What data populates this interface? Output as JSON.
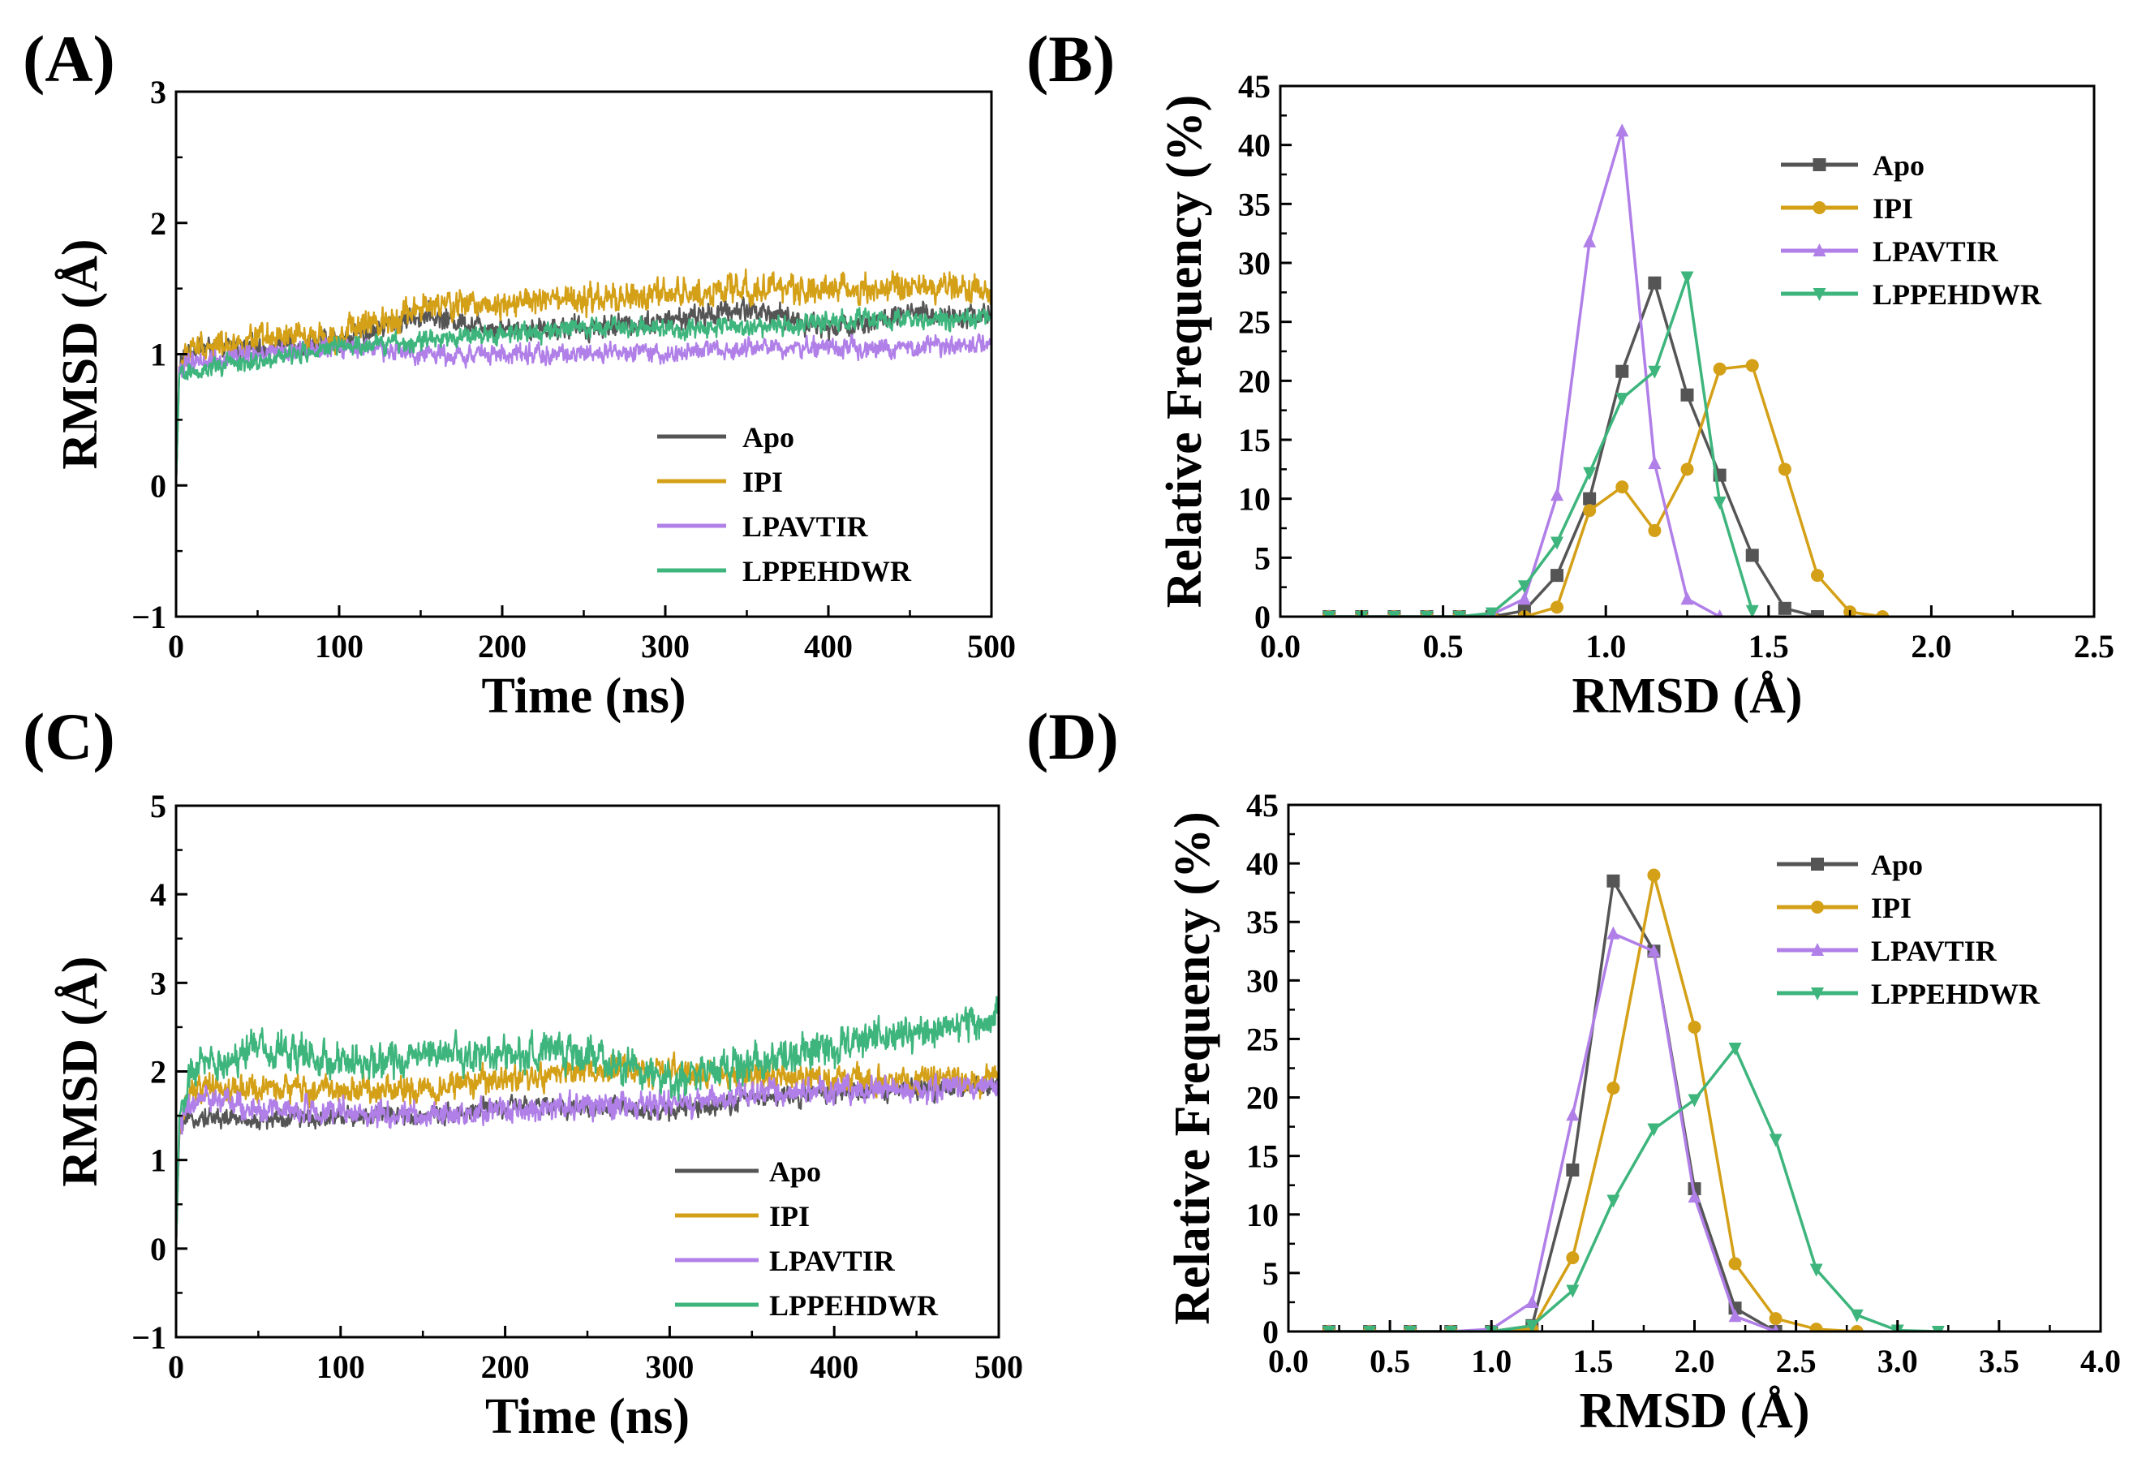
{
  "figure": {
    "colors": {
      "Apo": "#555555",
      "IPI": "#D4A017",
      "LPAVTIR": "#B07FE8",
      "LPPEHDWR": "#3DB57C"
    }
  },
  "chart_data": [
    {
      "id": "A",
      "panel_label": "(A)",
      "type": "line",
      "xlabel": "Time (ns)",
      "ylabel": "RMSD (Å)",
      "xlim": [
        0,
        500
      ],
      "ylim": [
        -1,
        3
      ],
      "xticks": [
        0,
        100,
        200,
        300,
        400,
        500
      ],
      "yticks": [
        -1,
        0,
        1,
        2,
        3
      ],
      "legend_position": "lower-right",
      "legend": [
        "Apo",
        "IPI",
        "LPAVTIR",
        "LPPEHDWR"
      ],
      "series": [
        {
          "name": "Apo",
          "color": "#555555",
          "x": [
            0,
            2,
            10,
            50,
            100,
            150,
            200,
            250,
            300,
            350,
            400,
            450,
            500
          ],
          "y": [
            0.0,
            0.9,
            1.05,
            1.05,
            1.1,
            1.3,
            1.2,
            1.2,
            1.25,
            1.35,
            1.2,
            1.3,
            1.3
          ],
          "noise": 0.07
        },
        {
          "name": "IPI",
          "color": "#D4A017",
          "x": [
            0,
            2,
            10,
            50,
            100,
            150,
            200,
            250,
            300,
            350,
            400,
            450,
            500
          ],
          "y": [
            0.0,
            0.9,
            1.05,
            1.1,
            1.15,
            1.35,
            1.4,
            1.4,
            1.45,
            1.5,
            1.5,
            1.5,
            1.5
          ],
          "noise": 0.09
        },
        {
          "name": "LPAVTIR",
          "color": "#B07FE8",
          "x": [
            0,
            2,
            10,
            50,
            100,
            150,
            200,
            250,
            300,
            350,
            400,
            450,
            500
          ],
          "y": [
            0.0,
            0.9,
            0.95,
            1.0,
            1.05,
            1.0,
            1.0,
            1.0,
            1.0,
            1.05,
            1.05,
            1.05,
            1.08
          ],
          "noise": 0.06
        },
        {
          "name": "LPPEHDWR",
          "color": "#3DB57C",
          "x": [
            0,
            2,
            10,
            50,
            100,
            150,
            200,
            250,
            300,
            350,
            400,
            450,
            500
          ],
          "y": [
            0.0,
            0.85,
            0.88,
            0.95,
            1.05,
            1.1,
            1.15,
            1.2,
            1.2,
            1.2,
            1.25,
            1.25,
            1.28
          ],
          "noise": 0.06
        }
      ]
    },
    {
      "id": "B",
      "panel_label": "(B)",
      "type": "line",
      "xlabel": "RMSD (Å)",
      "ylabel": "Relative Frequency (%)",
      "xlim": [
        0.0,
        2.5
      ],
      "ylim": [
        0,
        45
      ],
      "xticks": [
        "0.0",
        "0.5",
        "1.0",
        "1.5",
        "2.0",
        "2.5"
      ],
      "yticks": [
        0,
        5,
        10,
        15,
        20,
        25,
        30,
        35,
        40,
        45
      ],
      "legend_position": "top-right",
      "legend": [
        "Apo",
        "IPI",
        "LPAVTIR",
        "LPPEHDWR"
      ],
      "series": [
        {
          "name": "Apo",
          "color": "#555555",
          "marker": "square",
          "x": [
            0.15,
            0.25,
            0.35,
            0.45,
            0.55,
            0.65,
            0.75,
            0.85,
            0.95,
            1.05,
            1.15,
            1.25,
            1.35,
            1.45,
            1.55,
            1.65
          ],
          "y": [
            0,
            0,
            0,
            0,
            0,
            0,
            0.5,
            3.5,
            10,
            20.8,
            28.3,
            18.8,
            12,
            5.2,
            0.7,
            0
          ]
        },
        {
          "name": "IPI",
          "color": "#D4A017",
          "marker": "circle",
          "x": [
            0.15,
            0.25,
            0.35,
            0.45,
            0.55,
            0.65,
            0.75,
            0.85,
            0.95,
            1.05,
            1.15,
            1.25,
            1.35,
            1.45,
            1.55,
            1.65,
            1.75,
            1.85
          ],
          "y": [
            0,
            0,
            0,
            0,
            0,
            0,
            0,
            0.8,
            9,
            11,
            7.3,
            12.5,
            21,
            21.3,
            12.5,
            3.5,
            0.4,
            0
          ]
        },
        {
          "name": "LPAVTIR",
          "color": "#B07FE8",
          "marker": "triangle-up",
          "x": [
            0.15,
            0.25,
            0.35,
            0.45,
            0.55,
            0.65,
            0.75,
            0.85,
            0.95,
            1.05,
            1.15,
            1.25,
            1.35
          ],
          "y": [
            0,
            0,
            0,
            0,
            0,
            0.2,
            1.5,
            10.3,
            31.8,
            41.2,
            13,
            1.5,
            0
          ]
        },
        {
          "name": "LPPEHDWR",
          "color": "#3DB57C",
          "marker": "triangle-down",
          "x": [
            0.15,
            0.25,
            0.35,
            0.45,
            0.55,
            0.65,
            0.75,
            0.85,
            0.95,
            1.05,
            1.15,
            1.25,
            1.35,
            1.45
          ],
          "y": [
            0,
            0,
            0,
            0,
            0,
            0.3,
            2.6,
            6.3,
            12.2,
            18.5,
            20.8,
            28.8,
            9.7,
            0.5
          ]
        }
      ]
    },
    {
      "id": "C",
      "panel_label": "(C)",
      "type": "line",
      "xlabel": "Time (ns)",
      "ylabel": "RMSD (Å)",
      "xlim": [
        0,
        500
      ],
      "ylim": [
        -1,
        5
      ],
      "xticks": [
        0,
        100,
        200,
        300,
        400,
        500
      ],
      "yticks": [
        -1,
        0,
        1,
        2,
        3,
        4,
        5
      ],
      "legend_position": "lower-right",
      "legend": [
        "Apo",
        "IPI",
        "LPAVTIR",
        "LPPEHDWR"
      ],
      "series": [
        {
          "name": "Apo",
          "color": "#555555",
          "x": [
            0,
            2,
            10,
            50,
            100,
            150,
            200,
            250,
            300,
            350,
            400,
            450,
            500
          ],
          "y": [
            0.0,
            1.3,
            1.5,
            1.45,
            1.5,
            1.5,
            1.6,
            1.6,
            1.55,
            1.7,
            1.75,
            1.8,
            1.85
          ],
          "noise": 0.09
        },
        {
          "name": "IPI",
          "color": "#D4A017",
          "x": [
            0,
            2,
            10,
            50,
            100,
            150,
            200,
            250,
            300,
            350,
            400,
            450,
            500
          ],
          "y": [
            0.0,
            1.4,
            1.8,
            1.8,
            1.8,
            1.8,
            1.9,
            2.0,
            2.0,
            1.95,
            1.9,
            1.9,
            1.9
          ],
          "noise": 0.13
        },
        {
          "name": "LPAVTIR",
          "color": "#B07FE8",
          "x": [
            0,
            2,
            10,
            50,
            100,
            150,
            200,
            250,
            300,
            350,
            400,
            450,
            500
          ],
          "y": [
            0.0,
            1.4,
            1.7,
            1.6,
            1.55,
            1.5,
            1.55,
            1.6,
            1.65,
            1.75,
            1.8,
            1.8,
            1.85
          ],
          "noise": 0.12
        },
        {
          "name": "LPPEHDWR",
          "color": "#3DB57C",
          "x": [
            0,
            2,
            10,
            50,
            100,
            150,
            200,
            250,
            300,
            350,
            400,
            450,
            500
          ],
          "y": [
            0.0,
            1.5,
            2.0,
            2.3,
            2.1,
            2.2,
            2.2,
            2.2,
            1.9,
            2.1,
            2.3,
            2.4,
            2.6
          ],
          "noise": 0.17
        }
      ]
    },
    {
      "id": "D",
      "panel_label": "(D)",
      "type": "line",
      "xlabel": "RMSD (Å)",
      "ylabel": "Relative Frequency (%)",
      "xlim": [
        0.0,
        4.0
      ],
      "ylim": [
        0,
        45
      ],
      "xticks": [
        "0.0",
        "0.5",
        "1.0",
        "1.5",
        "2.0",
        "2.5",
        "3.0",
        "3.5",
        "4.0"
      ],
      "yticks": [
        0,
        5,
        10,
        15,
        20,
        25,
        30,
        35,
        40,
        45
      ],
      "legend_position": "top-right",
      "legend": [
        "Apo",
        "IPI",
        "LPAVTIR",
        "LPPEHDWR"
      ],
      "series": [
        {
          "name": "Apo",
          "color": "#555555",
          "marker": "square",
          "x": [
            0.2,
            0.4,
            0.6,
            0.8,
            1.0,
            1.2,
            1.4,
            1.6,
            1.8,
            2.0,
            2.2,
            2.4
          ],
          "y": [
            0,
            0,
            0,
            0,
            0,
            0.5,
            13.8,
            38.5,
            32.5,
            12.2,
            2,
            0
          ]
        },
        {
          "name": "IPI",
          "color": "#D4A017",
          "marker": "circle",
          "x": [
            0.2,
            0.4,
            0.6,
            0.8,
            1.0,
            1.2,
            1.4,
            1.6,
            1.8,
            2.0,
            2.2,
            2.4,
            2.6,
            2.8
          ],
          "y": [
            0,
            0,
            0,
            0,
            0,
            0.2,
            6.3,
            20.8,
            39,
            26,
            5.8,
            1.1,
            0.2,
            0
          ]
        },
        {
          "name": "LPAVTIR",
          "color": "#B07FE8",
          "marker": "triangle-up",
          "x": [
            0.2,
            0.4,
            0.6,
            0.8,
            1.0,
            1.2,
            1.4,
            1.6,
            1.8,
            2.0,
            2.2,
            2.4
          ],
          "y": [
            0,
            0,
            0,
            0,
            0.2,
            2.5,
            18.5,
            34,
            32.5,
            11.5,
            1.3,
            0
          ]
        },
        {
          "name": "LPPEHDWR",
          "color": "#3DB57C",
          "marker": "triangle-down",
          "x": [
            0.2,
            0.4,
            0.6,
            0.8,
            1.0,
            1.2,
            1.4,
            1.6,
            1.8,
            2.0,
            2.2,
            2.4,
            2.6,
            2.8,
            3.0,
            3.2
          ],
          "y": [
            0,
            0,
            0,
            0,
            0,
            0.5,
            3.5,
            11.2,
            17.3,
            19.8,
            24.2,
            16.4,
            5.3,
            1.4,
            0.1,
            0
          ]
        }
      ]
    }
  ]
}
